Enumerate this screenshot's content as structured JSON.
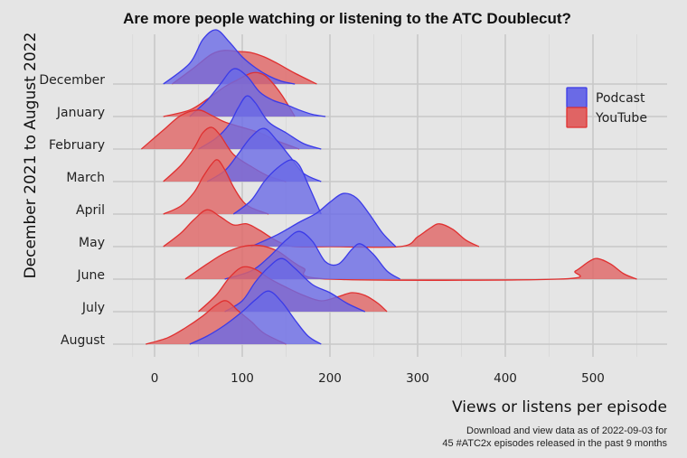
{
  "chart_data": {
    "type": "ridgeline",
    "title": "Are more people watching or listening to the ATC Doublecut?",
    "xlabel": "Views or listens per episode",
    "ylabel": "December 2021 to August 2022",
    "caption": [
      "Download and view data as of 2022-09-03 for",
      "45 #ATC2x episodes released in the past 9 months"
    ],
    "xlim": [
      -50,
      580
    ],
    "xticks": [
      0,
      100,
      200,
      300,
      400,
      500
    ],
    "grid": true,
    "legend_position": "top-right",
    "categories": [
      "December",
      "January",
      "February",
      "March",
      "April",
      "May",
      "June",
      "July",
      "August"
    ],
    "series": [
      {
        "name": "Podcast",
        "color": "#3b3be8",
        "fill": "#6a6ae6",
        "ridges": [
          {
            "month": "December",
            "x": [
              10,
              40,
              55,
              70,
              85,
              100,
              115,
              130,
              145,
              160
            ],
            "y": [
              0.0,
              0.38,
              0.82,
              1.0,
              0.78,
              0.5,
              0.3,
              0.15,
              0.05,
              0.0
            ]
          },
          {
            "month": "January",
            "x": [
              40,
              60,
              75,
              90,
              105,
              120,
              135,
              150,
              165,
              180,
              195
            ],
            "y": [
              0.0,
              0.3,
              0.6,
              0.88,
              0.75,
              0.45,
              0.3,
              0.22,
              0.12,
              0.04,
              0.0
            ]
          },
          {
            "month": "February",
            "x": [
              50,
              70,
              85,
              95,
              105,
              115,
              130,
              150,
              170,
              190
            ],
            "y": [
              0.0,
              0.2,
              0.45,
              0.75,
              0.98,
              0.85,
              0.5,
              0.3,
              0.1,
              0.0
            ]
          },
          {
            "month": "March",
            "x": [
              60,
              80,
              95,
              110,
              125,
              140,
              155,
              170,
              190
            ],
            "y": [
              0.0,
              0.2,
              0.5,
              0.82,
              0.98,
              0.75,
              0.45,
              0.15,
              0.0
            ]
          },
          {
            "month": "April",
            "x": [
              90,
              110,
              125,
              140,
              155,
              165,
              175,
              190
            ],
            "y": [
              0.0,
              0.25,
              0.6,
              0.85,
              1.0,
              0.9,
              0.55,
              0.0
            ]
          },
          {
            "month": "May",
            "x": [
              110,
              140,
              165,
              185,
              200,
              215,
              230,
              245,
              260,
              275
            ],
            "y": [
              0.0,
              0.22,
              0.45,
              0.62,
              0.82,
              0.98,
              0.9,
              0.6,
              0.25,
              0.0
            ]
          },
          {
            "month": "June",
            "x": [
              80,
              110,
              130,
              150,
              165,
              180,
              195,
              210,
              225,
              235,
              250,
              265,
              280
            ],
            "y": [
              0.0,
              0.15,
              0.4,
              0.72,
              0.88,
              0.7,
              0.32,
              0.28,
              0.55,
              0.65,
              0.45,
              0.15,
              0.0
            ]
          },
          {
            "month": "July",
            "x": [
              80,
              100,
              115,
              130,
              145,
              160,
              180,
              200,
              220,
              240
            ],
            "y": [
              0.0,
              0.2,
              0.55,
              0.82,
              0.98,
              0.8,
              0.5,
              0.35,
              0.15,
              0.0
            ]
          },
          {
            "month": "August",
            "x": [
              40,
              60,
              80,
              100,
              115,
              130,
              145,
              160,
              175,
              190
            ],
            "y": [
              0.0,
              0.15,
              0.35,
              0.6,
              0.82,
              0.98,
              0.78,
              0.45,
              0.15,
              0.0
            ]
          }
        ]
      },
      {
        "name": "YouTube",
        "color": "#e03030",
        "fill": "#e06464",
        "ridges": [
          {
            "month": "December",
            "x": [
              20,
              45,
              65,
              80,
              95,
              110,
              125,
              140,
              160,
              185
            ],
            "y": [
              0.0,
              0.3,
              0.55,
              0.62,
              0.6,
              0.58,
              0.5,
              0.38,
              0.2,
              0.0
            ]
          },
          {
            "month": "January",
            "x": [
              10,
              40,
              60,
              80,
              95,
              110,
              120,
              130,
              145,
              160
            ],
            "y": [
              0.0,
              0.12,
              0.32,
              0.55,
              0.68,
              0.8,
              0.8,
              0.7,
              0.4,
              0.0
            ]
          },
          {
            "month": "February",
            "x": [
              -15,
              10,
              30,
              50,
              65,
              80,
              100,
              120,
              140,
              165
            ],
            "y": [
              0.0,
              0.35,
              0.62,
              0.72,
              0.62,
              0.5,
              0.4,
              0.3,
              0.15,
              0.0
            ]
          },
          {
            "month": "March",
            "x": [
              10,
              30,
              45,
              55,
              65,
              75,
              90,
              110,
              130,
              150
            ],
            "y": [
              0.0,
              0.3,
              0.62,
              0.9,
              1.0,
              0.85,
              0.5,
              0.28,
              0.1,
              0.0
            ]
          },
          {
            "month": "April",
            "x": [
              10,
              30,
              45,
              55,
              65,
              72,
              80,
              90,
              100,
              110,
              130
            ],
            "y": [
              0.0,
              0.15,
              0.4,
              0.68,
              0.92,
              1.0,
              0.82,
              0.5,
              0.25,
              0.12,
              0.0
            ]
          },
          {
            "month": "May",
            "x": [
              10,
              30,
              45,
              60,
              75,
              90,
              105,
              120,
              140,
              160,
              200,
              280,
              300,
              315,
              325,
              340,
              355,
              370
            ],
            "y": [
              0.0,
              0.25,
              0.5,
              0.68,
              0.55,
              0.4,
              0.42,
              0.3,
              0.1,
              0.0,
              0.0,
              0.0,
              0.18,
              0.35,
              0.42,
              0.32,
              0.12,
              0.0
            ]
          },
          {
            "month": "June",
            "x": [
              35,
              60,
              80,
              100,
              120,
              140,
              155,
              170,
              200,
              460,
              480,
              495,
              505,
              520,
              535,
              550
            ],
            "y": [
              0.0,
              0.28,
              0.48,
              0.6,
              0.62,
              0.52,
              0.35,
              0.2,
              0.0,
              0.0,
              0.15,
              0.32,
              0.38,
              0.28,
              0.1,
              0.0
            ]
          },
          {
            "month": "July",
            "x": [
              50,
              70,
              85,
              100,
              115,
              130,
              150,
              170,
              190,
              210,
              225,
              240,
              255,
              265
            ],
            "y": [
              0.0,
              0.3,
              0.62,
              0.82,
              0.78,
              0.62,
              0.45,
              0.3,
              0.2,
              0.28,
              0.35,
              0.3,
              0.15,
              0.0
            ]
          },
          {
            "month": "August",
            "x": [
              -10,
              15,
              35,
              55,
              70,
              82,
              95,
              110,
              125,
              150
            ],
            "y": [
              0.0,
              0.12,
              0.3,
              0.52,
              0.72,
              0.8,
              0.62,
              0.42,
              0.2,
              0.0
            ]
          }
        ]
      }
    ]
  }
}
